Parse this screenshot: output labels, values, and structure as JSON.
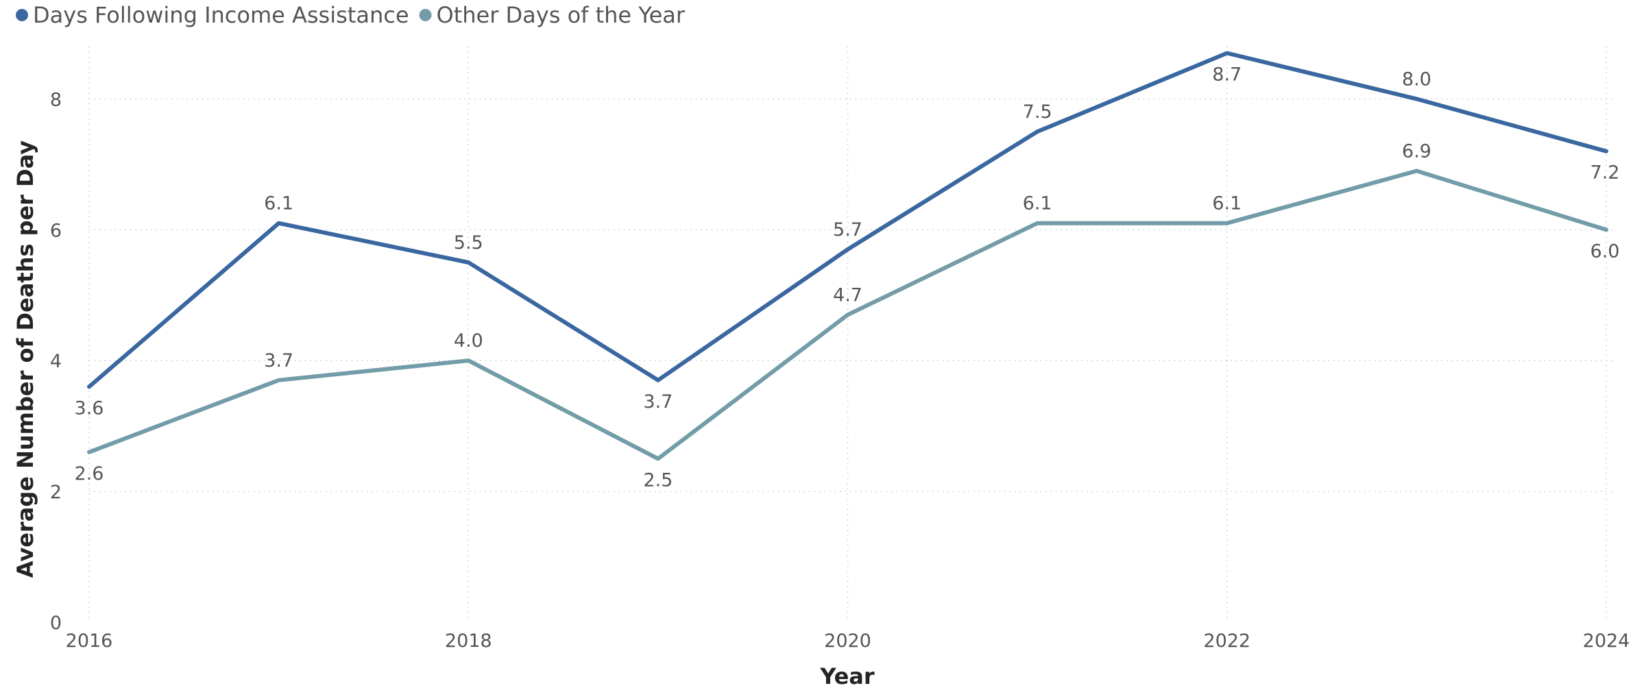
{
  "chart_data": {
    "type": "line",
    "title": "",
    "xlabel": "Year",
    "ylabel": "Average Number of Deaths per Day",
    "x": [
      2016,
      2017,
      2018,
      2019,
      2020,
      2021,
      2022,
      2023,
      2024
    ],
    "xticks": [
      "2016",
      "2018",
      "2020",
      "2022",
      "2024"
    ],
    "xlim": [
      2016,
      2024
    ],
    "yticks": [
      "0",
      "2",
      "4",
      "6",
      "8"
    ],
    "ylim": [
      0,
      8.8
    ],
    "grid": true,
    "legend_position": "top-left",
    "series": [
      {
        "name": "Days Following Income Assistance",
        "color": "#3a67a0",
        "values": [
          3.6,
          6.1,
          5.5,
          3.7,
          5.7,
          7.5,
          8.7,
          8.0,
          7.2
        ],
        "labels": [
          "3.6",
          "6.1",
          "5.5",
          "3.7",
          "5.7",
          "7.5",
          "8.7",
          "8.0",
          "7.2"
        ],
        "label_position": [
          "below",
          "above",
          "above",
          "below",
          "above",
          "above",
          "below",
          "above",
          "below"
        ]
      },
      {
        "name": "Other Days of the Year",
        "color": "#729ca8",
        "values": [
          2.6,
          3.7,
          4.0,
          2.5,
          4.7,
          6.1,
          6.1,
          6.9,
          6.0
        ],
        "labels": [
          "2.6",
          "3.7",
          "4.0",
          "2.5",
          "4.7",
          "6.1",
          "6.1",
          "6.9",
          "6.0"
        ],
        "label_position": [
          "below",
          "above",
          "above",
          "below",
          "above",
          "above",
          "above",
          "above",
          "below"
        ]
      }
    ]
  }
}
